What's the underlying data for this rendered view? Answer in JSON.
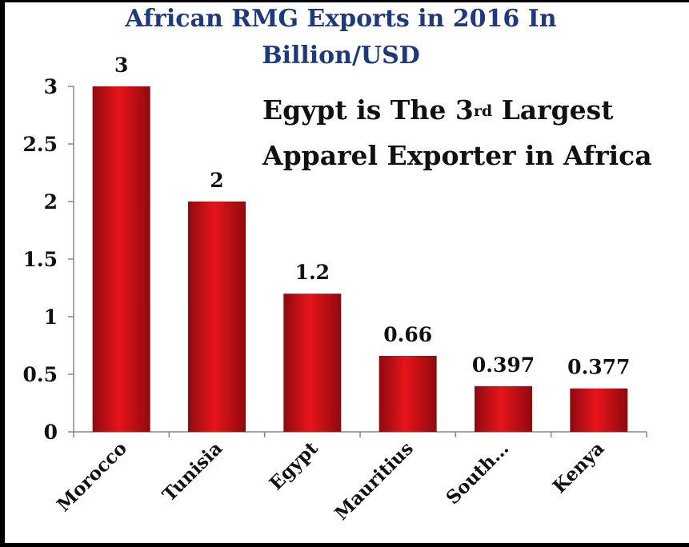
{
  "colors": {
    "background": "#ffffff",
    "title": "#1f3a7a",
    "bar": "#e8141c",
    "bar_dark": "#8e0a0e",
    "text": "#111111"
  },
  "callout": {
    "line1_pre": "Egypt is The 3",
    "line1_sup": "rd",
    "line1_post": " Largest",
    "line2": "Apparel Exporter in Africa"
  },
  "chart_data": {
    "type": "bar",
    "title_line1": "African RMG Exports in 2016 In",
    "title_line2": "Billion/USD",
    "categories": [
      "Morocco",
      "Tunisia",
      "Egypt",
      "Mauritius",
      "South…",
      "Kenya"
    ],
    "values": [
      3,
      2,
      1.2,
      0.66,
      0.397,
      0.377
    ],
    "data_labels": [
      "3",
      "2",
      "1.2",
      "0.66",
      "0.397",
      "0.377"
    ],
    "ylim": [
      0,
      3
    ],
    "yticks": [
      0,
      0.5,
      1,
      1.5,
      2,
      2.5,
      3
    ],
    "ytick_labels": [
      "0",
      "0.5",
      "1",
      "1.5",
      "2",
      "2.5",
      "3"
    ],
    "grid": false,
    "legend": "none"
  }
}
